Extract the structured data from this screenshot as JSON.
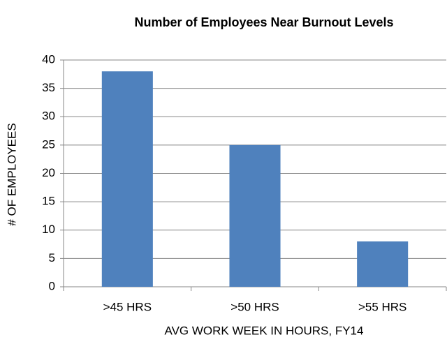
{
  "chart_data": {
    "type": "bar",
    "title": "Number of Employees Near Burnout Levels",
    "x_label": "AVG WORK WEEK IN HOURS, FY14",
    "y_label": "# OF EMPLOYEES",
    "categories": [
      ">45 HRS",
      ">50 HRS",
      ">55 HRS"
    ],
    "values": [
      38,
      25,
      8
    ],
    "color": "#4f81bd",
    "ylim": [
      0,
      40
    ],
    "yticks": [
      0,
      5,
      10,
      15,
      20,
      25,
      30,
      35,
      40
    ],
    "grid": true
  }
}
